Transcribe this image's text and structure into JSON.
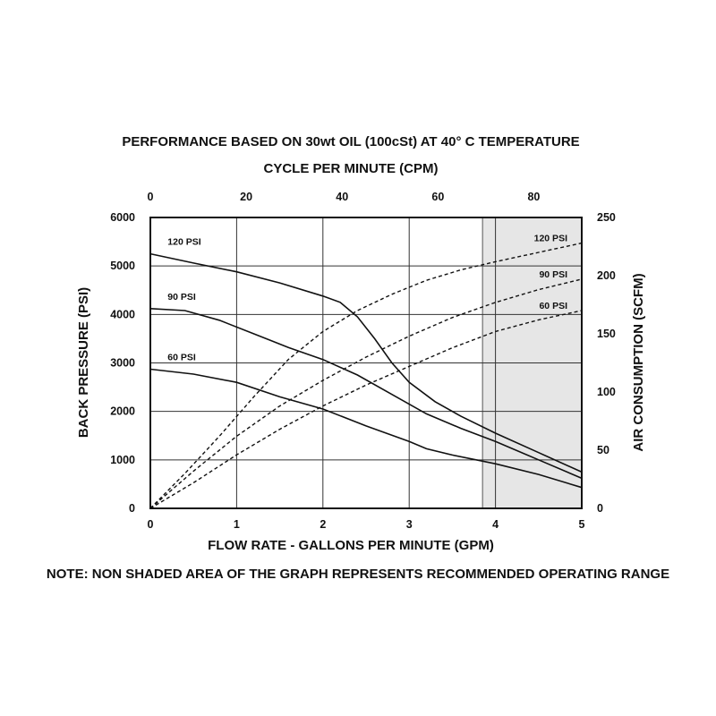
{
  "chart_data": {
    "type": "line",
    "title": "PERFORMANCE BASED ON 30wt OIL (100cSt) AT 40° C TEMPERATURE",
    "top_axis": {
      "label": "CYCLE PER MINUTE (CPM)",
      "ticks": [
        "0",
        "20",
        "40",
        "60",
        "80"
      ],
      "range": [
        0,
        90
      ]
    },
    "x_axis": {
      "label": "FLOW RATE - GALLONS PER MINUTE (GPM)",
      "ticks": [
        "0",
        "1",
        "2",
        "3",
        "4",
        "5"
      ],
      "range": [
        0,
        5
      ]
    },
    "y_left": {
      "label": "BACK PRESSURE (PSI)",
      "ticks": [
        "0",
        "1000",
        "2000",
        "3000",
        "4000",
        "5000",
        "6000"
      ],
      "range": [
        0,
        6000
      ]
    },
    "y_right": {
      "label": "AIR CONSUMPTION (SCFM)",
      "ticks": [
        "0",
        "50",
        "100",
        "150",
        "200",
        "250"
      ],
      "range": [
        0,
        250
      ]
    },
    "shaded_region": {
      "x_start": 3.85,
      "x_end": 5
    },
    "grid": true,
    "note": "NOTE: NON SHADED AREA OF THE GRAPH REPRESENTS RECOMMENDED OPERATING RANGE",
    "pressure_series": [
      {
        "name": "120 PSI",
        "axis": "left",
        "style": "solid",
        "points": [
          [
            0,
            5250
          ],
          [
            0.5,
            5060
          ],
          [
            1,
            4880
          ],
          [
            1.5,
            4650
          ],
          [
            2,
            4380
          ],
          [
            2.2,
            4250
          ],
          [
            2.4,
            3950
          ],
          [
            2.6,
            3500
          ],
          [
            2.8,
            3000
          ],
          [
            3,
            2600
          ],
          [
            3.3,
            2200
          ],
          [
            3.6,
            1900
          ],
          [
            4,
            1550
          ],
          [
            4.5,
            1150
          ],
          [
            5,
            750
          ]
        ]
      },
      {
        "name": "90 PSI",
        "axis": "left",
        "style": "solid",
        "points": [
          [
            0,
            4120
          ],
          [
            0.4,
            4080
          ],
          [
            0.8,
            3880
          ],
          [
            1.2,
            3600
          ],
          [
            1.6,
            3320
          ],
          [
            2,
            3070
          ],
          [
            2.4,
            2750
          ],
          [
            2.8,
            2350
          ],
          [
            3.2,
            1950
          ],
          [
            3.6,
            1650
          ],
          [
            4,
            1380
          ],
          [
            4.5,
            1000
          ],
          [
            5,
            620
          ]
        ]
      },
      {
        "name": "60 PSI",
        "axis": "left",
        "style": "solid",
        "points": [
          [
            0,
            2870
          ],
          [
            0.5,
            2770
          ],
          [
            1,
            2600
          ],
          [
            1.5,
            2300
          ],
          [
            2,
            2050
          ],
          [
            2.5,
            1700
          ],
          [
            3,
            1380
          ],
          [
            3.2,
            1230
          ],
          [
            3.5,
            1100
          ],
          [
            4,
            920
          ],
          [
            4.5,
            700
          ],
          [
            5,
            430
          ]
        ]
      }
    ],
    "air_series": [
      {
        "name": "120 PSI",
        "axis": "right",
        "style": "dashed",
        "points": [
          [
            0,
            0
          ],
          [
            0.4,
            30
          ],
          [
            0.8,
            62
          ],
          [
            1.2,
            96
          ],
          [
            1.6,
            128
          ],
          [
            2,
            152
          ],
          [
            2.4,
            170
          ],
          [
            2.8,
            184
          ],
          [
            3.2,
            196
          ],
          [
            3.6,
            205
          ],
          [
            4,
            212
          ],
          [
            4.5,
            220
          ],
          [
            5,
            228
          ]
        ]
      },
      {
        "name": "90 PSI",
        "axis": "right",
        "style": "dashed",
        "points": [
          [
            0,
            0
          ],
          [
            0.5,
            32
          ],
          [
            1,
            62
          ],
          [
            1.5,
            88
          ],
          [
            2,
            110
          ],
          [
            2.5,
            130
          ],
          [
            3,
            148
          ],
          [
            3.5,
            164
          ],
          [
            4,
            177
          ],
          [
            4.5,
            188
          ],
          [
            5,
            197
          ]
        ]
      },
      {
        "name": "60 PSI",
        "axis": "right",
        "style": "dashed",
        "points": [
          [
            0,
            0
          ],
          [
            0.5,
            22
          ],
          [
            1,
            46
          ],
          [
            1.5,
            68
          ],
          [
            2,
            88
          ],
          [
            2.5,
            106
          ],
          [
            3,
            122
          ],
          [
            3.5,
            138
          ],
          [
            4,
            152
          ],
          [
            4.5,
            162
          ],
          [
            5,
            170
          ]
        ]
      }
    ]
  }
}
